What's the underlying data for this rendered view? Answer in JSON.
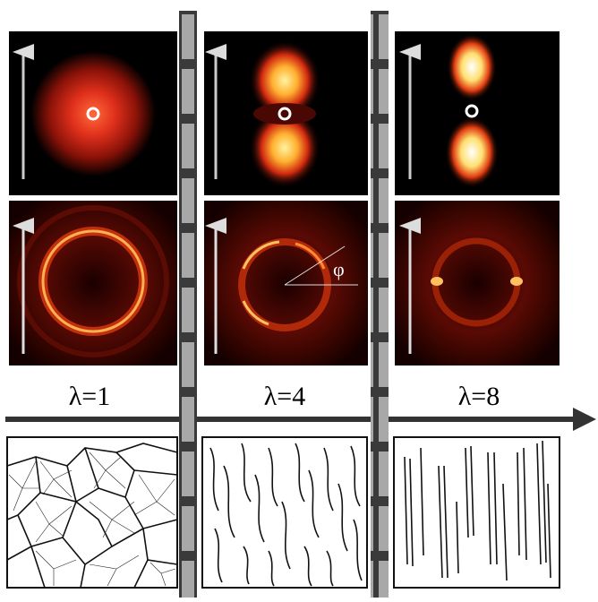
{
  "panels": [
    {
      "label": "λ=1"
    },
    {
      "label": "λ=4"
    },
    {
      "label": "λ=8"
    }
  ],
  "angle_symbol": "φ"
}
